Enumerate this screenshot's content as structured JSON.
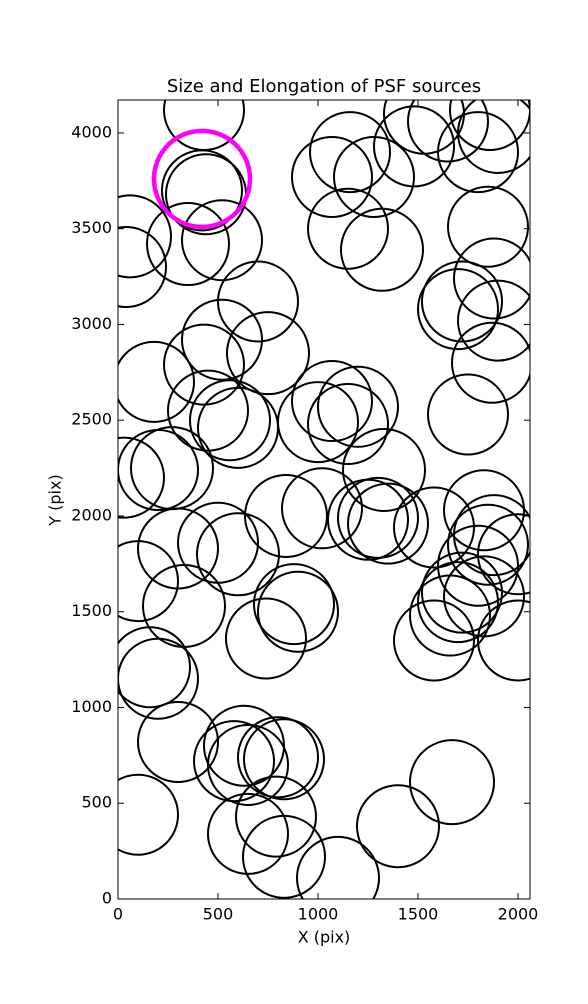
{
  "chart_data": {
    "type": "scatter",
    "title": "Size and Elongation of PSF sources",
    "x_label": "X (pix)",
    "y_label": "Y (pix)",
    "xlim": [
      0,
      2060
    ],
    "ylim": [
      0,
      4172
    ],
    "xticks": [
      0,
      500,
      1000,
      1500,
      2000
    ],
    "yticks": [
      0,
      500,
      1000,
      1500,
      2000,
      2500,
      3000,
      3500,
      4000
    ],
    "series": [
      {
        "color": "#000000",
        "line_width": 2,
        "x": [
          430,
          420,
          440,
          520,
          60,
          40,
          350,
          700,
          750,
          520,
          430,
          180,
          450,
          560,
          600,
          200,
          270,
          30,
          300,
          500,
          600,
          330,
          100,
          160,
          200,
          300,
          630,
          580,
          650,
          800,
          830,
          100,
          650,
          790,
          830,
          1100,
          1400,
          1670,
          740,
          880,
          900,
          840,
          1020,
          1000,
          1070,
          1150,
          1200,
          1330,
          1250,
          1300,
          1350,
          1580,
          1580,
          1660,
          1700,
          1720,
          1830,
          1800,
          1850,
          1830,
          1880,
          2000,
          2000,
          1750,
          1870,
          1900,
          1880,
          1700,
          1720,
          1850,
          1800,
          1900,
          1860,
          1650,
          1530,
          1480,
          1070,
          1160,
          1280,
          1150,
          1320
        ],
        "values": [
          4120,
          3700,
          3680,
          3440,
          3460,
          3300,
          3420,
          3120,
          2850,
          2920,
          2790,
          2700,
          2550,
          2500,
          2460,
          2240,
          2250,
          2200,
          1830,
          1860,
          1800,
          1530,
          1660,
          1210,
          1150,
          820,
          800,
          720,
          700,
          740,
          730,
          440,
          340,
          430,
          220,
          110,
          380,
          610,
          1360,
          1540,
          1500,
          2000,
          2040,
          2490,
          2600,
          2480,
          2570,
          2240,
          1980,
          1990,
          1960,
          1940,
          1350,
          1480,
          1550,
          1600,
          1580,
          1740,
          1850,
          2030,
          1900,
          1800,
          1350,
          2530,
          2800,
          3020,
          3240,
          3080,
          3120,
          3510,
          3900,
          4000,
          4120,
          4060,
          4100,
          3930,
          3770,
          3900,
          3770,
          3500,
          3390
        ],
        "sizes": [
          200,
          200,
          200,
          200,
          205,
          200,
          205,
          200,
          205,
          200,
          200,
          200,
          200,
          200,
          200,
          200,
          205,
          200,
          200,
          200,
          205,
          205,
          200,
          200,
          200,
          200,
          200,
          200,
          200,
          200,
          200,
          200,
          200,
          200,
          205,
          205,
          205,
          210,
          200,
          200,
          200,
          205,
          200,
          200,
          200,
          200,
          200,
          205,
          200,
          200,
          200,
          200,
          200,
          200,
          200,
          200,
          200,
          200,
          200,
          200,
          200,
          200,
          200,
          200,
          200,
          200,
          200,
          200,
          200,
          200,
          200,
          200,
          200,
          200,
          200,
          200,
          200,
          200,
          200,
          200,
          205
        ]
      },
      {
        "color": "#ff00ff",
        "line_width": 4.5,
        "x": [
          420
        ],
        "values": [
          3760
        ],
        "sizes": [
          240
        ]
      }
    ]
  }
}
